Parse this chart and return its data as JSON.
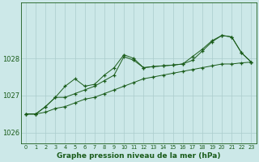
{
  "title": "Graphe pression niveau de la mer (hPa)",
  "background_color": "#cce8e8",
  "grid_color": "#aacccc",
  "line_color": "#1a5c1a",
  "xlim": [
    -0.5,
    23.5
  ],
  "ylim": [
    1025.7,
    1029.5
  ],
  "yticks": [
    1026,
    1027,
    1028
  ],
  "xticks": [
    0,
    1,
    2,
    3,
    4,
    5,
    6,
    7,
    8,
    9,
    10,
    11,
    12,
    13,
    14,
    15,
    16,
    17,
    18,
    19,
    20,
    21,
    22,
    23
  ],
  "line1": [
    1026.5,
    1026.5,
    1026.55,
    1026.65,
    1026.7,
    1026.8,
    1026.9,
    1026.95,
    1027.05,
    1027.15,
    1027.25,
    1027.35,
    1027.45,
    1027.5,
    1027.55,
    1027.6,
    1027.65,
    1027.7,
    1027.75,
    1027.8,
    1027.85,
    1027.85,
    1027.88,
    1027.9
  ],
  "line2": [
    1026.5,
    1026.5,
    1026.7,
    1026.95,
    1027.25,
    1027.45,
    1027.25,
    1027.3,
    1027.55,
    1027.75,
    1028.1,
    1028.0,
    1027.75,
    1027.78,
    1027.8,
    1027.82,
    1027.85,
    1028.05,
    1028.25,
    1028.48,
    1028.62,
    1028.58,
    1028.15,
    1027.9
  ],
  "line3": [
    1026.5,
    1026.5,
    1026.7,
    1026.95,
    1026.95,
    1027.05,
    1027.15,
    1027.25,
    1027.4,
    1027.55,
    1028.05,
    1027.95,
    1027.75,
    1027.78,
    1027.8,
    1027.82,
    1027.85,
    1027.95,
    1028.2,
    1028.45,
    1028.62,
    1028.58,
    1028.15,
    1027.9
  ]
}
